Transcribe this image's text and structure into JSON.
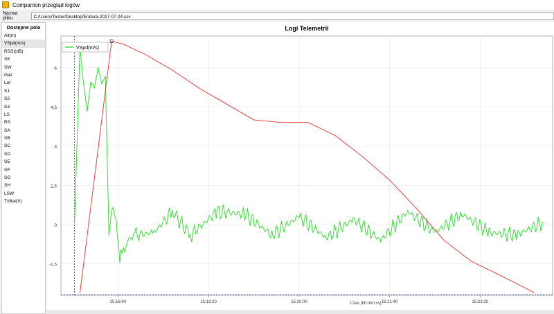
{
  "window": {
    "title": "Companion przegląd logów"
  },
  "file_bar": {
    "label": "Nazwa pliku",
    "path": "C:/Users/Tester/Desktop/Endura-2017-07-24.csv"
  },
  "sidebar": {
    "header": "Dostępne pola",
    "items": [
      {
        "label": "Alt(m)"
      },
      {
        "label": "VSpd(m/s)"
      },
      {
        "label": "RSSI(dB)"
      },
      {
        "label": "SK"
      },
      {
        "label": "SW"
      },
      {
        "label": "Gaz"
      },
      {
        "label": "Lot"
      },
      {
        "label": "S1"
      },
      {
        "label": "S2"
      },
      {
        "label": "S3"
      },
      {
        "label": "LS"
      },
      {
        "label": "RS"
      },
      {
        "label": "SA"
      },
      {
        "label": "SB"
      },
      {
        "label": "SC"
      },
      {
        "label": "SD"
      },
      {
        "label": "SE"
      },
      {
        "label": "SF"
      },
      {
        "label": "SG"
      },
      {
        "label": "SH"
      },
      {
        "label": "LSW"
      },
      {
        "label": "TxBat(V)"
      }
    ],
    "selected_index": 1
  },
  "chart_data": {
    "type": "line",
    "title": "Logi Telemetrii",
    "xlabel": "Czas (hh:mm:ss)",
    "ylabel": "",
    "x_ticks": [
      "15:16:40",
      "15:18:20",
      "15:20:00",
      "15:21:40",
      "15:23:20"
    ],
    "y_ticks": [
      -1.5,
      0,
      1.5,
      3,
      4.5,
      6
    ],
    "y_tick_labels": [
      "-1,5",
      "0",
      "1,5",
      "3",
      "4,5",
      "6"
    ],
    "ylim": [
      -2.7,
      7.2
    ],
    "legend": {
      "placement": "top-left",
      "entries": [
        "VSpd(m/s)"
      ]
    },
    "series": [
      {
        "name": "VSpd(m/s)",
        "color": "#22dd22",
        "x": [
          "15:15:52",
          "15:15:58",
          "15:16:02",
          "15:16:06",
          "15:16:10",
          "15:16:14",
          "15:16:18",
          "15:16:22",
          "15:16:26",
          "15:16:30",
          "15:16:34",
          "15:16:38",
          "15:16:42",
          "15:16:46",
          "15:16:50",
          "15:17:00",
          "15:17:20",
          "15:17:40",
          "15:18:00",
          "15:18:30",
          "15:19:00",
          "15:19:30",
          "15:20:00",
          "15:20:30",
          "15:21:00",
          "15:21:30",
          "15:22:00",
          "15:22:30",
          "15:23:00",
          "15:23:30",
          "15:24:00",
          "15:24:30"
        ],
        "values": [
          0.0,
          6.8,
          5.4,
          4.3,
          5.5,
          5.2,
          6.0,
          5.4,
          5.6,
          -0.2,
          0.6,
          0.2,
          -1.3,
          -1.1,
          -0.6,
          -0.4,
          -0.3,
          0.5,
          -0.4,
          0.5,
          0.4,
          -0.4,
          0.3,
          -0.5,
          0.2,
          -0.6,
          0.5,
          -0.3,
          0.4,
          -0.3,
          -0.4,
          0.1
        ]
      },
      {
        "name": "",
        "color": "#e83030",
        "x": [
          "15:15:58",
          "15:16:33",
          "15:16:45",
          "15:17:10",
          "15:17:40",
          "15:18:10",
          "15:18:40",
          "15:19:10",
          "15:19:40",
          "15:20:10",
          "15:20:40",
          "15:21:10",
          "15:21:40",
          "15:22:10",
          "15:22:40",
          "15:23:10",
          "15:23:40",
          "15:24:20"
        ],
        "values": [
          -2.6,
          7.0,
          6.9,
          6.5,
          5.9,
          5.2,
          4.6,
          4.0,
          3.9,
          3.9,
          3.4,
          2.6,
          1.7,
          0.6,
          -0.6,
          -1.4,
          -1.9,
          -2.6
        ]
      }
    ]
  },
  "toolbar_bottom": {
    "icons": [
      "left-arrow-icon",
      "checkbox-icon",
      "checkbox-icon"
    ]
  }
}
